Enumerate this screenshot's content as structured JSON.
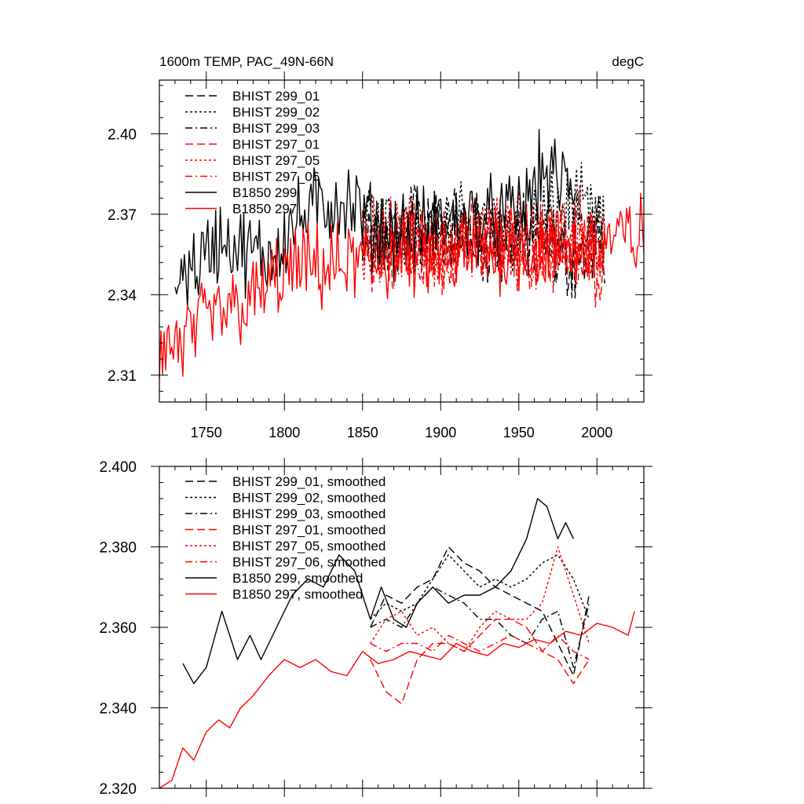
{
  "chart_data": [
    {
      "type": "line",
      "title": "1600m TEMP, PAC_49N-66N",
      "units": "degC",
      "xlim": [
        1720,
        2030
      ],
      "ylim": [
        2.3,
        2.42
      ],
      "xticks": [
        1750,
        1800,
        1850,
        1900,
        1950,
        2000
      ],
      "yticks": [
        2.31,
        2.34,
        2.37,
        2.4
      ],
      "ytick_labels": [
        "2.31",
        "2.34",
        "2.37",
        "2.40"
      ],
      "legend_position": "top-left",
      "series": [
        {
          "name": "BHIST 299_01",
          "color": "#000000",
          "dash": "dash",
          "start": 1850,
          "end": 2005,
          "anchors": [
            [
              1850,
              2.362
            ],
            [
              1870,
              2.36
            ],
            [
              1890,
              2.364
            ],
            [
              1910,
              2.366
            ],
            [
              1930,
              2.362
            ],
            [
              1950,
              2.362
            ],
            [
              1970,
              2.358
            ],
            [
              1985,
              2.352
            ],
            [
              2005,
              2.36
            ]
          ]
        },
        {
          "name": "BHIST 299_02",
          "color": "#000000",
          "dash": "dot",
          "start": 1850,
          "end": 2005,
          "anchors": [
            [
              1850,
              2.362
            ],
            [
              1870,
              2.366
            ],
            [
              1890,
              2.364
            ],
            [
              1910,
              2.366
            ],
            [
              1930,
              2.364
            ],
            [
              1950,
              2.364
            ],
            [
              1970,
              2.37
            ],
            [
              1985,
              2.374
            ],
            [
              2005,
              2.362
            ]
          ]
        },
        {
          "name": "BHIST 299_03",
          "color": "#000000",
          "dash": "dashdot",
          "start": 1850,
          "end": 2005,
          "anchors": [
            [
              1850,
              2.36
            ],
            [
              1870,
              2.362
            ],
            [
              1890,
              2.368
            ],
            [
              1910,
              2.366
            ],
            [
              1930,
              2.362
            ],
            [
              1950,
              2.36
            ],
            [
              1970,
              2.362
            ],
            [
              1985,
              2.36
            ],
            [
              2005,
              2.362
            ]
          ]
        },
        {
          "name": "BHIST 297_01",
          "color": "#ff0000",
          "dash": "dash",
          "start": 1850,
          "end": 2005,
          "anchors": [
            [
              1850,
              2.358
            ],
            [
              1870,
              2.354
            ],
            [
              1890,
              2.356
            ],
            [
              1910,
              2.358
            ],
            [
              1930,
              2.36
            ],
            [
              1950,
              2.36
            ],
            [
              1970,
              2.356
            ],
            [
              1985,
              2.354
            ],
            [
              2005,
              2.352
            ]
          ]
        },
        {
          "name": "BHIST 297_05",
          "color": "#ff0000",
          "dash": "dot",
          "start": 1850,
          "end": 2005,
          "anchors": [
            [
              1850,
              2.36
            ],
            [
              1870,
              2.362
            ],
            [
              1890,
              2.36
            ],
            [
              1910,
              2.356
            ],
            [
              1930,
              2.362
            ],
            [
              1950,
              2.362
            ],
            [
              1970,
              2.362
            ],
            [
              1985,
              2.366
            ],
            [
              2005,
              2.356
            ]
          ]
        },
        {
          "name": "BHIST 297_06",
          "color": "#ff0000",
          "dash": "dashdot",
          "start": 1850,
          "end": 2005,
          "anchors": [
            [
              1850,
              2.358
            ],
            [
              1870,
              2.358
            ],
            [
              1890,
              2.356
            ],
            [
              1910,
              2.356
            ],
            [
              1930,
              2.358
            ],
            [
              1950,
              2.356
            ],
            [
              1970,
              2.358
            ],
            [
              1985,
              2.356
            ],
            [
              2005,
              2.354
            ]
          ]
        },
        {
          "name": "B1850 299",
          "color": "#000000",
          "dash": "solid",
          "start": 1730,
          "end": 1987,
          "anchors": [
            [
              1730,
              2.348
            ],
            [
              1745,
              2.352
            ],
            [
              1760,
              2.362
            ],
            [
              1775,
              2.356
            ],
            [
              1790,
              2.354
            ],
            [
              1805,
              2.366
            ],
            [
              1820,
              2.372
            ],
            [
              1835,
              2.376
            ],
            [
              1850,
              2.37
            ],
            [
              1860,
              2.362
            ],
            [
              1880,
              2.364
            ],
            [
              1900,
              2.366
            ],
            [
              1920,
              2.368
            ],
            [
              1940,
              2.368
            ],
            [
              1955,
              2.374
            ],
            [
              1965,
              2.386
            ],
            [
              1975,
              2.382
            ],
            [
              1987,
              2.38
            ]
          ]
        },
        {
          "name": "B1850 297",
          "color": "#ff0000",
          "dash": "solid",
          "start": 1720,
          "end": 2030,
          "anchors": [
            [
              1720,
              2.32
            ],
            [
              1735,
              2.322
            ],
            [
              1750,
              2.33
            ],
            [
              1765,
              2.334
            ],
            [
              1780,
              2.338
            ],
            [
              1795,
              2.346
            ],
            [
              1810,
              2.35
            ],
            [
              1830,
              2.35
            ],
            [
              1850,
              2.352
            ],
            [
              1870,
              2.354
            ],
            [
              1890,
              2.354
            ],
            [
              1910,
              2.356
            ],
            [
              1930,
              2.356
            ],
            [
              1950,
              2.358
            ],
            [
              1970,
              2.356
            ],
            [
              1990,
              2.358
            ],
            [
              2010,
              2.36
            ],
            [
              2030,
              2.362
            ]
          ]
        }
      ]
    },
    {
      "type": "line",
      "xlim": [
        1720,
        2030
      ],
      "ylim": [
        2.32,
        2.4
      ],
      "xticks": [
        1750,
        1800,
        1850,
        1900,
        1950,
        2000
      ],
      "yticks": [
        2.32,
        2.34,
        2.36,
        2.38,
        2.4
      ],
      "ytick_labels": [
        "2.320",
        "2.340",
        "2.360",
        "2.380",
        "2.400"
      ],
      "legend_position": "top-left",
      "series": [
        {
          "name": "BHIST 299_01, smoothed",
          "color": "#000000",
          "dash": "dash",
          "x": [
            1855,
            1865,
            1875,
            1885,
            1895,
            1905,
            1915,
            1925,
            1935,
            1945,
            1955,
            1965,
            1975,
            1985,
            1995
          ],
          "y": [
            2.36,
            2.368,
            2.366,
            2.37,
            2.372,
            2.38,
            2.376,
            2.374,
            2.37,
            2.368,
            2.366,
            2.364,
            2.356,
            2.348,
            2.368
          ]
        },
        {
          "name": "BHIST 299_02, smoothed",
          "color": "#000000",
          "dash": "dot",
          "x": [
            1855,
            1865,
            1875,
            1885,
            1895,
            1905,
            1915,
            1925,
            1935,
            1945,
            1955,
            1965,
            1975,
            1985,
            1995
          ],
          "y": [
            2.362,
            2.366,
            2.364,
            2.366,
            2.372,
            2.378,
            2.374,
            2.37,
            2.372,
            2.37,
            2.372,
            2.376,
            2.378,
            2.372,
            2.362
          ]
        },
        {
          "name": "BHIST 299_03, smoothed",
          "color": "#000000",
          "dash": "dashdot",
          "x": [
            1855,
            1865,
            1875,
            1885,
            1895,
            1905,
            1915,
            1925,
            1935,
            1945,
            1955,
            1965,
            1975,
            1985,
            1995
          ],
          "y": [
            2.36,
            2.362,
            2.36,
            2.366,
            2.37,
            2.368,
            2.366,
            2.362,
            2.362,
            2.358,
            2.356,
            2.362,
            2.364,
            2.35,
            2.366
          ]
        },
        {
          "name": "BHIST 297_01, smoothed",
          "color": "#ff0000",
          "dash": "dash",
          "x": [
            1855,
            1865,
            1875,
            1885,
            1895,
            1905,
            1915,
            1925,
            1935,
            1945,
            1955,
            1965,
            1975,
            1985,
            1995
          ],
          "y": [
            2.352,
            2.344,
            2.341,
            2.352,
            2.356,
            2.356,
            2.354,
            2.358,
            2.362,
            2.362,
            2.36,
            2.354,
            2.352,
            2.346,
            2.352
          ]
        },
        {
          "name": "BHIST 297_05, smoothed",
          "color": "#ff0000",
          "dash": "dot",
          "x": [
            1855,
            1865,
            1875,
            1885,
            1895,
            1905,
            1915,
            1925,
            1935,
            1945,
            1955,
            1965,
            1975,
            1985,
            1995
          ],
          "y": [
            2.356,
            2.362,
            2.364,
            2.358,
            2.36,
            2.356,
            2.354,
            2.36,
            2.364,
            2.362,
            2.362,
            2.366,
            2.38,
            2.368,
            2.356
          ]
        },
        {
          "name": "BHIST 297_06, smoothed",
          "color": "#ff0000",
          "dash": "dashdot",
          "x": [
            1855,
            1865,
            1875,
            1885,
            1895,
            1905,
            1915,
            1925,
            1935,
            1945,
            1955,
            1965,
            1975,
            1985,
            1995
          ],
          "y": [
            2.356,
            2.354,
            2.356,
            2.356,
            2.354,
            2.358,
            2.356,
            2.354,
            2.356,
            2.358,
            2.356,
            2.354,
            2.358,
            2.354,
            2.352
          ]
        },
        {
          "name": "B1850 299, smoothed",
          "color": "#000000",
          "dash": "solid",
          "x": [
            1735,
            1742,
            1750,
            1760,
            1770,
            1778,
            1785,
            1795,
            1805,
            1815,
            1825,
            1835,
            1845,
            1855,
            1862,
            1870,
            1878,
            1885,
            1895,
            1905,
            1915,
            1925,
            1935,
            1945,
            1955,
            1962,
            1968,
            1975,
            1980,
            1985
          ],
          "y": [
            2.351,
            2.346,
            2.35,
            2.364,
            2.352,
            2.358,
            2.352,
            2.36,
            2.368,
            2.372,
            2.37,
            2.378,
            2.374,
            2.362,
            2.37,
            2.362,
            2.36,
            2.366,
            2.37,
            2.366,
            2.368,
            2.368,
            2.37,
            2.374,
            2.382,
            2.392,
            2.39,
            2.382,
            2.386,
            2.382
          ]
        },
        {
          "name": "B1850 297, smoothed",
          "color": "#ff0000",
          "dash": "solid",
          "x": [
            1720,
            1728,
            1735,
            1742,
            1750,
            1758,
            1765,
            1772,
            1780,
            1790,
            1800,
            1810,
            1820,
            1830,
            1840,
            1850,
            1860,
            1870,
            1880,
            1890,
            1900,
            1910,
            1920,
            1930,
            1940,
            1950,
            1960,
            1970,
            1980,
            1990,
            2000,
            2010,
            2020,
            2024
          ],
          "y": [
            2.318,
            2.322,
            2.33,
            2.327,
            2.334,
            2.337,
            2.335,
            2.34,
            2.343,
            2.348,
            2.352,
            2.35,
            2.352,
            2.349,
            2.348,
            2.354,
            2.351,
            2.352,
            2.354,
            2.353,
            2.352,
            2.356,
            2.354,
            2.353,
            2.356,
            2.355,
            2.357,
            2.356,
            2.359,
            2.358,
            2.361,
            2.36,
            2.358,
            2.364
          ]
        }
      ]
    }
  ]
}
